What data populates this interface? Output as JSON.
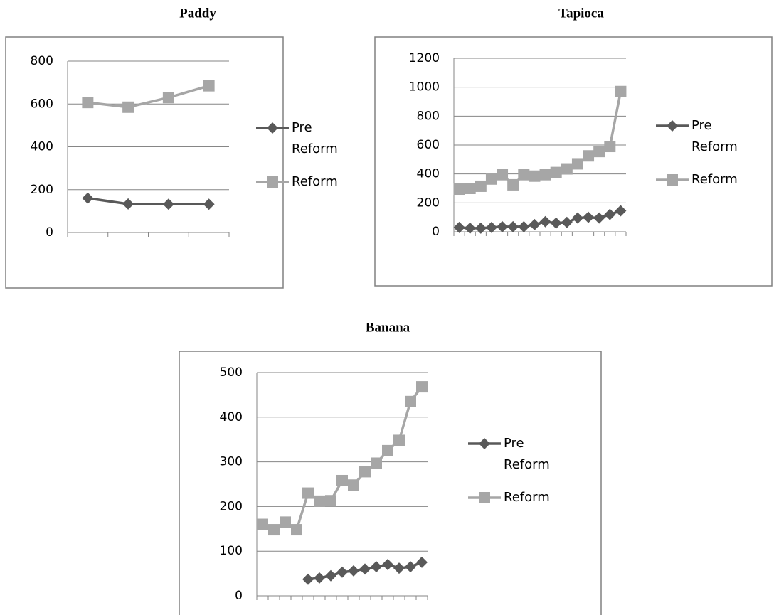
{
  "chart_data": [
    {
      "type": "line",
      "title": "Paddy",
      "categories": [
        null,
        null,
        null,
        null
      ],
      "ylim": [
        0,
        800
      ],
      "yticks": [
        0,
        200,
        400,
        600,
        800
      ],
      "grid": true,
      "series": [
        {
          "name": "Pre Reform",
          "color": "#595959",
          "values": [
            160,
            133,
            132,
            132
          ]
        },
        {
          "name": "Reform",
          "color": "#a6a6a6",
          "values": [
            607,
            585,
            630,
            685
          ]
        }
      ]
    },
    {
      "type": "line",
      "title": "Tapioca",
      "categories": [
        null,
        null,
        null,
        null,
        null,
        null,
        null,
        null,
        null,
        null,
        null,
        null,
        null,
        null,
        null,
        null
      ],
      "ylim": [
        0,
        1200
      ],
      "yticks": [
        0,
        200,
        400,
        600,
        800,
        1000,
        1200
      ],
      "grid": true,
      "series": [
        {
          "name": "Pre Reform",
          "color": "#595959",
          "values": [
            30,
            25,
            25,
            30,
            35,
            35,
            35,
            50,
            70,
            60,
            65,
            95,
            100,
            95,
            120,
            145
          ]
        },
        {
          "name": "Reform",
          "color": "#a6a6a6",
          "values": [
            295,
            300,
            315,
            365,
            395,
            325,
            395,
            385,
            395,
            410,
            435,
            470,
            525,
            555,
            590,
            970
          ]
        }
      ]
    },
    {
      "type": "line",
      "title": "Banana",
      "categories": [
        null,
        null,
        null,
        null,
        null,
        null,
        null,
        null,
        null,
        null,
        null,
        null,
        null,
        null,
        null
      ],
      "ylim": [
        0,
        500
      ],
      "yticks": [
        0,
        100,
        200,
        300,
        400,
        500
      ],
      "grid": true,
      "series": [
        {
          "name": "Pre Reform",
          "color": "#595959",
          "values": [
            null,
            null,
            null,
            null,
            37,
            40,
            45,
            53,
            56,
            60,
            65,
            70,
            62,
            65,
            75
          ]
        },
        {
          "name": "Reform",
          "color": "#a6a6a6",
          "values": [
            160,
            148,
            165,
            148,
            230,
            212,
            213,
            258,
            248,
            278,
            297,
            325,
            348,
            435,
            468
          ]
        }
      ]
    }
  ]
}
